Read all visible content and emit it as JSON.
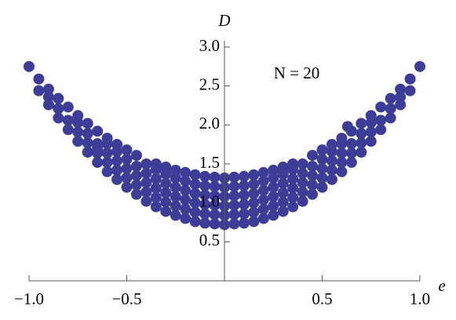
{
  "chart_data": {
    "type": "scatter",
    "x_label": "e",
    "y_label": "D",
    "annotation": "N = 20",
    "color": "#3d3d98",
    "xlim": [
      -1,
      1
    ],
    "ylim": [
      0,
      3
    ],
    "xticks": [
      {
        "value": -1,
        "label": "−1.0"
      },
      {
        "value": -0.5,
        "label": "−0.5"
      },
      {
        "value": 0.5,
        "label": "0.5"
      },
      {
        "value": 1,
        "label": "1.0"
      }
    ],
    "yticks": [
      0.5,
      {
        "value": 1,
        "label": "1.0"
      },
      1.5,
      {
        "value": 2,
        "label": "2.0"
      },
      2.5,
      {
        "value": 3,
        "label": "3.0"
      }
    ],
    "x": [
      0,
      0,
      0,
      0,
      0,
      0,
      0.05,
      0.05,
      0.05,
      0.05,
      0.05,
      0.05,
      0.1,
      0.1,
      0.1,
      0.1,
      0.1,
      0.1,
      0.15,
      0.15,
      0.15,
      0.15,
      0.15,
      0.15,
      0.2,
      0.2,
      0.2,
      0.2,
      0.2,
      0.2,
      0.25,
      0.25,
      0.25,
      0.25,
      0.25,
      0.25,
      0.3,
      0.3,
      0.3,
      0.3,
      0.3,
      0.3,
      0.35,
      0.35,
      0.35,
      0.35,
      0.35,
      0.35,
      0.4,
      0.4,
      0.4,
      0.4,
      0.4,
      0.45,
      0.45,
      0.45,
      0.45,
      0.45,
      0.5,
      0.5,
      0.5,
      0.5,
      0.5,
      0.55,
      0.55,
      0.55,
      0.55,
      0.55,
      0.6,
      0.6,
      0.6,
      0.6,
      0.6,
      0.65,
      0.65,
      0.65,
      0.65,
      0.7,
      0.7,
      0.7,
      0.7,
      0.75,
      0.75,
      0.75,
      0.75,
      0.8,
      0.8,
      0.8,
      0.85,
      0.85,
      0.85,
      0.9,
      0.9,
      0.9,
      0.95,
      0.95,
      1.0,
      0.63,
      -0.05,
      -0.05,
      -0.05,
      -0.05,
      -0.05,
      -0.05,
      -0.1,
      -0.1,
      -0.1,
      -0.1,
      -0.1,
      -0.1,
      -0.15,
      -0.15,
      -0.15,
      -0.15,
      -0.15,
      -0.15,
      -0.2,
      -0.2,
      -0.2,
      -0.2,
      -0.2,
      -0.2,
      -0.25,
      -0.25,
      -0.25,
      -0.25,
      -0.25,
      -0.25,
      -0.3,
      -0.3,
      -0.3,
      -0.3,
      -0.3,
      -0.3,
      -0.35,
      -0.35,
      -0.35,
      -0.35,
      -0.35,
      -0.35,
      -0.4,
      -0.4,
      -0.4,
      -0.4,
      -0.4,
      -0.45,
      -0.45,
      -0.45,
      -0.45,
      -0.45,
      -0.5,
      -0.5,
      -0.5,
      -0.5,
      -0.5,
      -0.55,
      -0.55,
      -0.55,
      -0.55,
      -0.55,
      -0.6,
      -0.6,
      -0.6,
      -0.6,
      -0.6,
      -0.65,
      -0.65,
      -0.65,
      -0.65,
      -0.7,
      -0.7,
      -0.7,
      -0.7,
      -0.75,
      -0.75,
      -0.75,
      -0.75,
      -0.8,
      -0.8,
      -0.8,
      -0.85,
      -0.85,
      -0.85,
      -0.9,
      -0.9,
      -0.9,
      -0.95,
      -0.95,
      -1.0,
      -0.65
    ],
    "values": [
      0.72,
      0.84,
      0.96,
      1.08,
      1.2,
      1.32,
      0.73,
      0.85,
      0.97,
      1.09,
      1.21,
      1.33,
      0.74,
      0.86,
      0.98,
      1.1,
      1.22,
      1.34,
      0.76,
      0.88,
      1.0,
      1.12,
      1.24,
      1.36,
      0.8,
      0.92,
      1.04,
      1.16,
      1.28,
      1.39,
      0.84,
      0.96,
      1.08,
      1.2,
      1.32,
      1.42,
      0.89,
      1.01,
      1.13,
      1.25,
      1.37,
      1.46,
      0.95,
      1.07,
      1.19,
      1.31,
      1.43,
      1.5,
      1.02,
      1.14,
      1.26,
      1.38,
      1.5,
      1.11,
      1.23,
      1.35,
      1.47,
      1.61,
      1.2,
      1.32,
      1.44,
      1.56,
      1.68,
      1.3,
      1.42,
      1.54,
      1.66,
      1.75,
      1.4,
      1.52,
      1.64,
      1.76,
      1.83,
      1.52,
      1.64,
      1.76,
      1.92,
      1.65,
      1.77,
      1.89,
      2.02,
      1.79,
      1.91,
      2.03,
      2.12,
      1.94,
      2.06,
      2.23,
      2.09,
      2.21,
      2.34,
      2.26,
      2.36,
      2.46,
      2.44,
      2.59,
      2.75,
      1.98,
      0.73,
      0.85,
      0.97,
      1.09,
      1.21,
      1.33,
      0.74,
      0.86,
      0.98,
      1.1,
      1.22,
      1.34,
      0.76,
      0.88,
      1.0,
      1.12,
      1.24,
      1.36,
      0.8,
      0.92,
      1.04,
      1.16,
      1.28,
      1.39,
      0.84,
      0.96,
      1.08,
      1.2,
      1.32,
      1.42,
      0.89,
      1.01,
      1.13,
      1.25,
      1.37,
      1.46,
      0.95,
      1.07,
      1.19,
      1.31,
      1.43,
      1.5,
      1.02,
      1.14,
      1.26,
      1.38,
      1.5,
      1.11,
      1.23,
      1.35,
      1.47,
      1.61,
      1.2,
      1.32,
      1.44,
      1.56,
      1.68,
      1.3,
      1.42,
      1.54,
      1.66,
      1.75,
      1.4,
      1.52,
      1.64,
      1.76,
      1.83,
      1.52,
      1.64,
      1.76,
      1.92,
      1.65,
      1.77,
      1.89,
      2.02,
      1.79,
      1.91,
      2.03,
      2.12,
      1.94,
      2.06,
      2.23,
      2.09,
      2.21,
      2.34,
      2.26,
      2.36,
      2.46,
      2.44,
      2.59,
      2.75,
      1.7
    ]
  }
}
